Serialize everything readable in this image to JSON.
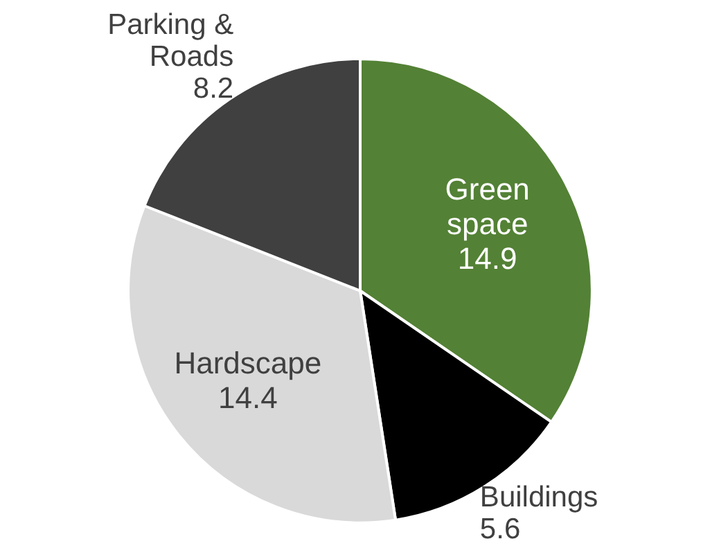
{
  "chart_data": {
    "type": "pie",
    "categories": [
      "Green space",
      "Buildings",
      "Hardscape",
      "Parking & Roads"
    ],
    "values": [
      14.9,
      5.6,
      14.4,
      8.2
    ],
    "colors": [
      "#538135",
      "#000000",
      "#d9d9d9",
      "#404040"
    ],
    "data_labels": true
  }
}
